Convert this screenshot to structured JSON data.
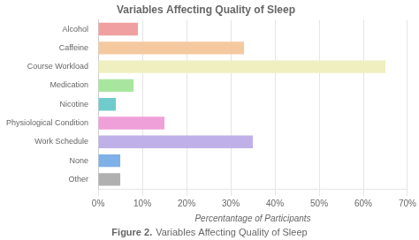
{
  "chart_data": {
    "type": "bar",
    "orientation": "horizontal",
    "title": "Variables Affecting Quality of Sleep",
    "categories": [
      "Alcohol",
      "Caffeine",
      "Course Workload",
      "Medication",
      "Nicotine",
      "Physiological Condition",
      "Work Schedule",
      "None",
      "Other"
    ],
    "values": [
      9,
      33,
      65,
      8,
      4,
      15,
      35,
      5,
      5
    ],
    "colors": [
      "#F0A0A0",
      "#F5C9A0",
      "#EFEFC0",
      "#A8E6A0",
      "#70CCCC",
      "#F0A0D8",
      "#C0B0E8",
      "#80B0E8",
      "#B0B0B0"
    ],
    "xlabel": "Percentantage of Participants",
    "xlim": [
      0,
      70
    ],
    "xticks": [
      {
        "value": 0,
        "label": "0%"
      },
      {
        "value": 10,
        "label": "10%"
      },
      {
        "value": 20,
        "label": "20%"
      },
      {
        "value": 30,
        "label": "30%"
      },
      {
        "value": 40,
        "label": "40%"
      },
      {
        "value": 50,
        "label": "50%"
      },
      {
        "value": 60,
        "label": "60%"
      },
      {
        "value": 70,
        "label": "70%"
      }
    ],
    "grid": "x",
    "annotations": [
      "Figure 2.",
      "Variables Affecting Quality of Sleep"
    ]
  }
}
